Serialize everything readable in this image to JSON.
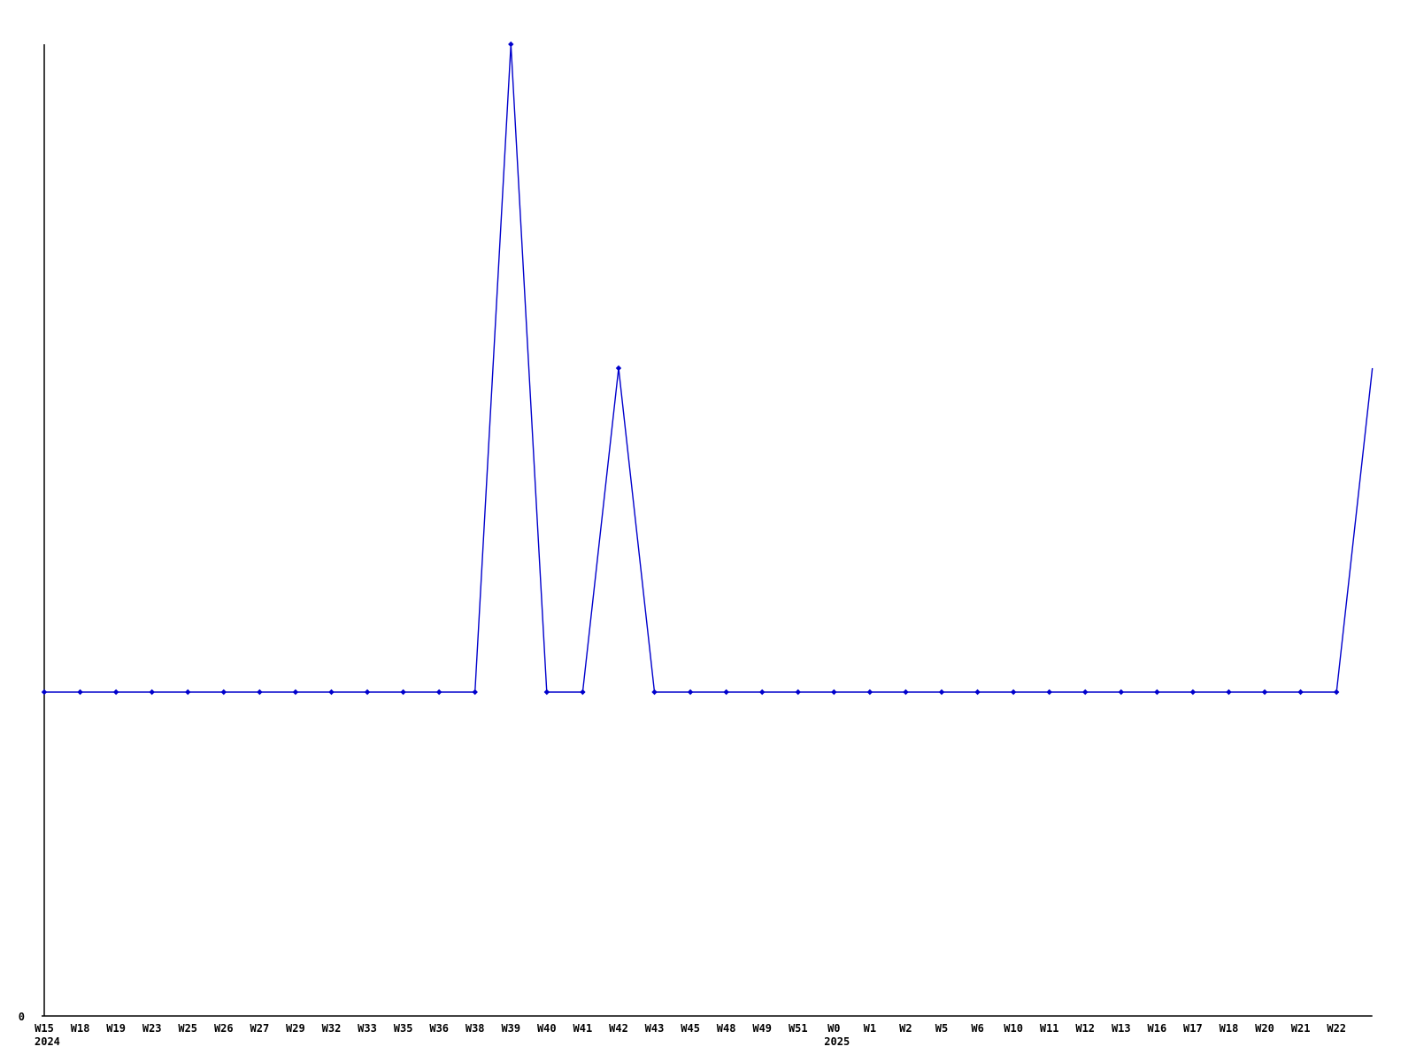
{
  "chart_data": {
    "type": "line",
    "title": "",
    "xlabel": "",
    "ylabel": "",
    "x_labels": [
      "W15",
      "W18",
      "W19",
      "W23",
      "W25",
      "W26",
      "W27",
      "W29",
      "W32",
      "W33",
      "W35",
      "W36",
      "W38",
      "W39",
      "W40",
      "W41",
      "W42",
      "W43",
      "W45",
      "W48",
      "W49",
      "W51",
      "W0",
      "W1",
      "W2",
      "W5",
      "W6",
      "W10",
      "W11",
      "W12",
      "W13",
      "W16",
      "W17",
      "W18",
      "W20",
      "W21",
      "W22"
    ],
    "values": [
      1,
      1,
      1,
      1,
      1,
      1,
      1,
      1,
      1,
      1,
      1,
      1,
      1,
      3,
      1,
      1,
      2,
      1,
      1,
      1,
      1,
      1,
      1,
      1,
      1,
      1,
      1,
      1,
      1,
      1,
      1,
      1,
      1,
      1,
      1,
      1,
      1
    ],
    "clipped_end_value": 2,
    "year_markers": [
      {
        "label": "2024",
        "index": 0
      },
      {
        "label": "2025",
        "index": 22
      }
    ],
    "y_axis": {
      "min_label": "0",
      "min": 0,
      "max": 3
    },
    "legend": "none",
    "grid": false,
    "line_color": "#0000cc",
    "marker_color": "#0000cc",
    "axis_color": "#000000",
    "background": "#ffffff",
    "marker": "diamond"
  }
}
